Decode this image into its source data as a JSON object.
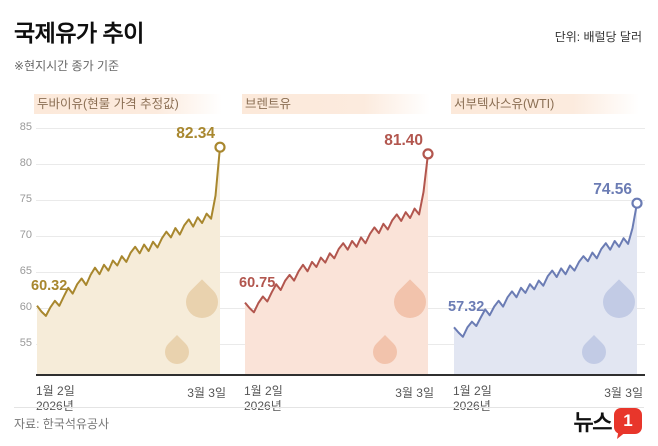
{
  "header": {
    "title": "국제유가 추이",
    "unit": "단위: 배럴당 달러",
    "note": "※현지시간 종가 기준"
  },
  "axis": {
    "y_ticks": [
      85,
      80,
      75,
      70,
      65,
      60,
      55
    ],
    "x_start_line1": "1월 2일",
    "x_start_line2": "2026년",
    "x_end": "3월 3일"
  },
  "footer": {
    "source": "자료: 한국석유공사",
    "logo_text": "뉴스",
    "logo_badge": "1"
  },
  "chart_data": {
    "type": "line",
    "title": "국제유가 추이",
    "unit": "배럴당 달러",
    "ylim": [
      55,
      85
    ],
    "x_range": [
      "1월 2일 2026년",
      "3월 3일"
    ],
    "grid": true,
    "series": [
      {
        "name": "두바이유(현물 가격 추정값)",
        "color": "#a8872e",
        "fill": "#f6ecd9",
        "drop": "#e9d2ae",
        "start_label": "60.32",
        "end_label": "82.34",
        "values": [
          60.32,
          59.5,
          58.9,
          60.1,
          61.0,
          60.3,
          61.6,
          62.8,
          62.0,
          63.3,
          64.1,
          63.2,
          64.6,
          65.6,
          64.7,
          66.0,
          65.2,
          66.6,
          65.9,
          67.2,
          66.4,
          67.7,
          68.5,
          67.6,
          68.8,
          67.9,
          69.2,
          68.4,
          69.7,
          70.6,
          69.8,
          71.1,
          70.2,
          71.5,
          72.3,
          71.3,
          72.6,
          71.8,
          73.1,
          72.4,
          75.6,
          82.34
        ]
      },
      {
        "name": "브렌트유",
        "color": "#b2564e",
        "fill": "#fae3d8",
        "drop": "#f2c3ac",
        "start_label": "60.75",
        "end_label": "81.40",
        "values": [
          60.75,
          60.0,
          59.4,
          60.7,
          61.6,
          60.9,
          62.2,
          63.3,
          62.5,
          63.8,
          64.6,
          63.8,
          65.1,
          66.0,
          65.1,
          66.4,
          65.7,
          67.0,
          66.3,
          67.6,
          66.9,
          68.2,
          69.0,
          68.1,
          69.3,
          68.5,
          69.8,
          69.0,
          70.3,
          71.2,
          70.4,
          71.7,
          70.9,
          72.2,
          73.0,
          72.1,
          73.3,
          72.5,
          73.8,
          73.0,
          76.1,
          81.4
        ]
      },
      {
        "name": "서부텍사스유(WTI)",
        "color": "#6b7cb4",
        "fill": "#e2e6f2",
        "drop": "#c2cbe5",
        "start_label": "57.32",
        "end_label": "74.56",
        "values": [
          57.32,
          56.6,
          56.0,
          57.3,
          58.1,
          57.5,
          58.7,
          59.8,
          59.0,
          60.2,
          61.0,
          60.2,
          61.5,
          62.3,
          61.5,
          62.8,
          62.1,
          63.3,
          62.6,
          63.8,
          63.1,
          64.4,
          65.2,
          64.3,
          65.5,
          64.7,
          65.9,
          65.2,
          66.4,
          67.2,
          66.5,
          67.7,
          66.9,
          68.2,
          69.0,
          68.1,
          69.3,
          68.5,
          69.7,
          68.9,
          71.1,
          74.56
        ]
      }
    ]
  }
}
